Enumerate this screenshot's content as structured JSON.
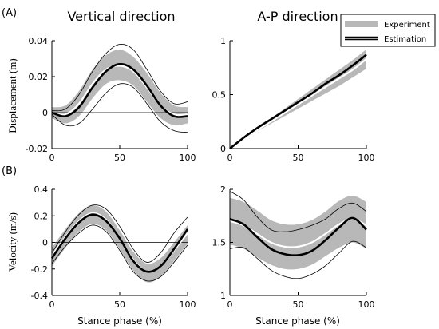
{
  "panel_labels": [
    "(A)",
    "(B)"
  ],
  "column_titles": [
    "Vertical direction",
    "A-P direction"
  ],
  "legend": {
    "items": [
      "Experiment",
      "Estimation"
    ],
    "position": "top-right"
  },
  "colors": {
    "band": "#b8b8b8",
    "mean_white": "#ffffff",
    "estimation": "#000000",
    "bounds": "#000000",
    "axis": "#000000"
  },
  "chart_data": [
    {
      "id": "vertical-displacement",
      "type": "line",
      "xlabel": "",
      "ylabel": "Displacement (m)",
      "xlim": [
        0,
        100
      ],
      "ylim": [
        -0.02,
        0.04
      ],
      "xticks": [
        0,
        50,
        100
      ],
      "yticks": [
        -0.02,
        0,
        0.02,
        0.04
      ],
      "ytick_labels": [
        "-0.02",
        "0",
        "0.02",
        "0.04"
      ],
      "zero_line": true,
      "x": [
        0,
        10,
        20,
        30,
        40,
        50,
        60,
        70,
        80,
        90,
        100
      ],
      "series": [
        {
          "role": "experiment_mean",
          "values": [
            0.0,
            -0.001,
            0.005,
            0.016,
            0.024,
            0.026,
            0.023,
            0.014,
            0.004,
            -0.001,
            -0.001
          ]
        },
        {
          "role": "experiment_upper",
          "values": [
            0.003,
            0.004,
            0.012,
            0.024,
            0.032,
            0.035,
            0.031,
            0.022,
            0.011,
            0.004,
            0.003
          ]
        },
        {
          "role": "experiment_lower",
          "values": [
            -0.003,
            -0.006,
            -0.002,
            0.008,
            0.016,
            0.018,
            0.015,
            0.006,
            -0.003,
            -0.007,
            -0.006
          ]
        },
        {
          "role": "estimation",
          "values": [
            0.0,
            -0.002,
            0.003,
            0.014,
            0.023,
            0.027,
            0.024,
            0.015,
            0.004,
            -0.002,
            -0.002
          ]
        },
        {
          "role": "estimation_upper",
          "values": [
            0.001,
            0.002,
            0.01,
            0.023,
            0.033,
            0.038,
            0.035,
            0.024,
            0.012,
            0.005,
            0.006
          ]
        },
        {
          "role": "estimation_lower",
          "values": [
            -0.001,
            -0.007,
            -0.006,
            0.002,
            0.011,
            0.016,
            0.014,
            0.005,
            -0.005,
            -0.01,
            -0.011
          ]
        }
      ]
    },
    {
      "id": "ap-displacement",
      "type": "line",
      "xlabel": "",
      "ylabel": "",
      "xlim": [
        0,
        100
      ],
      "ylim": [
        0,
        1
      ],
      "xticks": [
        0,
        50,
        100
      ],
      "yticks": [
        0,
        0.5,
        1
      ],
      "ytick_labels": [
        "0",
        "0.5",
        "1"
      ],
      "zero_line": false,
      "x": [
        0,
        10,
        20,
        30,
        40,
        50,
        60,
        70,
        80,
        90,
        100
      ],
      "series": [
        {
          "role": "experiment_mean",
          "values": [
            0.0,
            0.09,
            0.17,
            0.25,
            0.33,
            0.41,
            0.49,
            0.57,
            0.65,
            0.73,
            0.83
          ]
        },
        {
          "role": "experiment_upper",
          "values": [
            0.0,
            0.1,
            0.19,
            0.28,
            0.37,
            0.46,
            0.55,
            0.64,
            0.73,
            0.82,
            0.92
          ]
        },
        {
          "role": "experiment_lower",
          "values": [
            0.0,
            0.08,
            0.16,
            0.23,
            0.3,
            0.37,
            0.44,
            0.51,
            0.58,
            0.66,
            0.74
          ]
        },
        {
          "role": "estimation",
          "values": [
            0.0,
            0.1,
            0.19,
            0.27,
            0.35,
            0.43,
            0.51,
            0.6,
            0.68,
            0.77,
            0.87
          ]
        },
        {
          "role": "estimation_upper",
          "values": [
            0.0,
            0.1,
            0.19,
            0.27,
            0.35,
            0.43,
            0.51,
            0.6,
            0.68,
            0.77,
            0.87
          ]
        },
        {
          "role": "estimation_lower",
          "values": [
            0.0,
            0.1,
            0.19,
            0.27,
            0.35,
            0.43,
            0.51,
            0.6,
            0.68,
            0.77,
            0.87
          ]
        }
      ]
    },
    {
      "id": "vertical-velocity",
      "type": "line",
      "xlabel": "Stance phase (%)",
      "ylabel": "Velocity (m/s)",
      "xlim": [
        0,
        100
      ],
      "ylim": [
        -0.4,
        0.4
      ],
      "xticks": [
        0,
        50,
        100
      ],
      "yticks": [
        -0.4,
        -0.2,
        0,
        0.2,
        0.4
      ],
      "ytick_labels": [
        "-0.4",
        "-0.2",
        "0",
        "0.2",
        "0.4"
      ],
      "zero_line": true,
      "x": [
        0,
        10,
        20,
        30,
        40,
        50,
        60,
        70,
        80,
        90,
        100
      ],
      "series": [
        {
          "role": "experiment_mean",
          "values": [
            -0.1,
            0.04,
            0.16,
            0.22,
            0.17,
            0.03,
            -0.13,
            -0.22,
            -0.18,
            -0.06,
            0.07
          ]
        },
        {
          "role": "experiment_upper",
          "values": [
            -0.04,
            0.1,
            0.22,
            0.28,
            0.23,
            0.09,
            -0.07,
            -0.16,
            -0.12,
            0.0,
            0.13
          ]
        },
        {
          "role": "experiment_lower",
          "values": [
            -0.18,
            -0.04,
            0.08,
            0.14,
            0.09,
            -0.05,
            -0.21,
            -0.3,
            -0.26,
            -0.14,
            -0.01
          ]
        },
        {
          "role": "estimation",
          "values": [
            -0.12,
            0.03,
            0.15,
            0.21,
            0.16,
            0.03,
            -0.14,
            -0.22,
            -0.18,
            -0.05,
            0.1
          ]
        },
        {
          "role": "estimation_upper",
          "values": [
            -0.08,
            0.08,
            0.21,
            0.28,
            0.25,
            0.12,
            -0.05,
            -0.15,
            -0.08,
            0.07,
            0.19
          ]
        },
        {
          "role": "estimation_lower",
          "values": [
            -0.16,
            -0.03,
            0.07,
            0.13,
            0.08,
            -0.06,
            -0.22,
            -0.29,
            -0.26,
            -0.15,
            -0.02
          ]
        }
      ]
    },
    {
      "id": "ap-velocity",
      "type": "line",
      "xlabel": "Stance phase (%)",
      "ylabel": "",
      "xlim": [
        0,
        100
      ],
      "ylim": [
        1,
        2
      ],
      "xticks": [
        0,
        50,
        100
      ],
      "yticks": [
        1,
        1.5,
        2
      ],
      "ytick_labels": [
        "1",
        "1.5",
        "2"
      ],
      "zero_line": false,
      "x": [
        0,
        10,
        20,
        30,
        40,
        50,
        60,
        70,
        80,
        90,
        100
      ],
      "series": [
        {
          "role": "experiment_mean",
          "values": [
            1.7,
            1.66,
            1.58,
            1.5,
            1.46,
            1.46,
            1.5,
            1.58,
            1.67,
            1.72,
            1.66
          ]
        },
        {
          "role": "experiment_upper",
          "values": [
            1.92,
            1.88,
            1.8,
            1.71,
            1.67,
            1.67,
            1.71,
            1.79,
            1.89,
            1.94,
            1.88
          ]
        },
        {
          "role": "experiment_lower",
          "values": [
            1.48,
            1.44,
            1.36,
            1.29,
            1.25,
            1.25,
            1.29,
            1.37,
            1.45,
            1.5,
            1.44
          ]
        },
        {
          "role": "estimation",
          "values": [
            1.72,
            1.67,
            1.55,
            1.44,
            1.39,
            1.38,
            1.42,
            1.52,
            1.64,
            1.73,
            1.62
          ]
        },
        {
          "role": "estimation_upper",
          "values": [
            1.98,
            1.9,
            1.74,
            1.62,
            1.6,
            1.62,
            1.66,
            1.72,
            1.82,
            1.87,
            1.79
          ]
        },
        {
          "role": "estimation_lower",
          "values": [
            1.44,
            1.45,
            1.35,
            1.24,
            1.18,
            1.16,
            1.2,
            1.28,
            1.4,
            1.51,
            1.45
          ]
        }
      ]
    }
  ]
}
